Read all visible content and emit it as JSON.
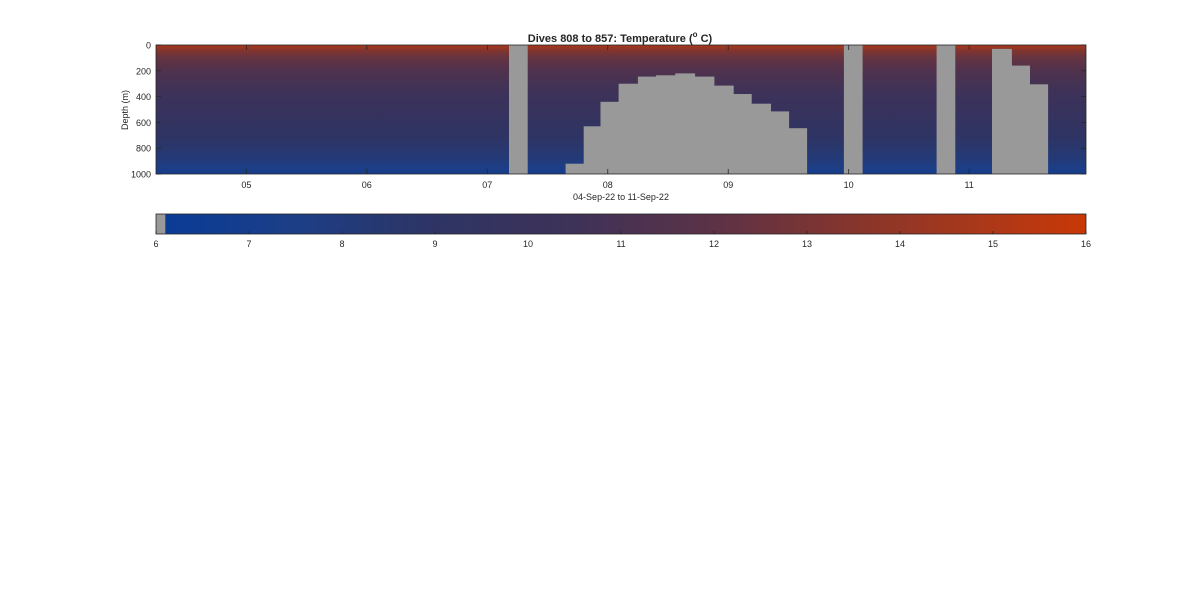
{
  "chart_data": {
    "type": "heatmap",
    "title": "Dives 808 to 857: Temperature (",
    "title_superscript": "o",
    "title_tail": " C)",
    "xlabel": "04-Sep-22 to 11-Sep-22",
    "ylabel": "Depth (m)",
    "x_ticks": [
      {
        "day": 5,
        "label": "05"
      },
      {
        "day": 6,
        "label": "06"
      },
      {
        "day": 7,
        "label": "07"
      },
      {
        "day": 8,
        "label": "08"
      },
      {
        "day": 9,
        "label": "09"
      },
      {
        "day": 10,
        "label": "10"
      },
      {
        "day": 11,
        "label": "11"
      }
    ],
    "xlim_days": [
      4.25,
      11.97
    ],
    "y_ticks": [
      0,
      200,
      400,
      600,
      800,
      1000
    ],
    "ylim": [
      0,
      1000
    ],
    "y_reversed": true,
    "temperature_profile": {
      "depth_m": [
        0,
        50,
        100,
        200,
        300,
        400,
        500,
        600,
        700,
        800,
        900,
        960,
        1000
      ],
      "temp_c": [
        14.8,
        13.2,
        12.3,
        11.4,
        10.8,
        10.3,
        9.9,
        9.5,
        9.1,
        8.6,
        8.0,
        7.4,
        7.0
      ]
    },
    "no_data_color": "#999999",
    "no_data_regions": [
      {
        "from_day": 7.18,
        "to_day": 7.33,
        "top_m": 0
      },
      {
        "from_day": 7.65,
        "to_day": 7.8,
        "top_m": 920
      },
      {
        "from_day": 7.8,
        "to_day": 7.94,
        "top_m": 630
      },
      {
        "from_day": 7.94,
        "to_day": 8.09,
        "top_m": 440
      },
      {
        "from_day": 8.09,
        "to_day": 8.25,
        "top_m": 300
      },
      {
        "from_day": 8.25,
        "to_day": 8.4,
        "top_m": 245
      },
      {
        "from_day": 8.4,
        "to_day": 8.56,
        "top_m": 235
      },
      {
        "from_day": 8.56,
        "to_day": 8.72,
        "top_m": 220
      },
      {
        "from_day": 8.72,
        "to_day": 8.88,
        "top_m": 245
      },
      {
        "from_day": 8.88,
        "to_day": 9.04,
        "top_m": 315
      },
      {
        "from_day": 9.04,
        "to_day": 9.19,
        "top_m": 380
      },
      {
        "from_day": 9.19,
        "to_day": 9.35,
        "top_m": 455
      },
      {
        "from_day": 9.35,
        "to_day": 9.5,
        "top_m": 515
      },
      {
        "from_day": 9.5,
        "to_day": 9.65,
        "top_m": 645
      },
      {
        "from_day": 9.96,
        "to_day": 10.11,
        "top_m": 0
      },
      {
        "from_day": 10.73,
        "to_day": 10.88,
        "top_m": 0
      },
      {
        "from_day": 11.19,
        "to_day": 11.35,
        "top_m": 30
      },
      {
        "from_day": 11.35,
        "to_day": 11.5,
        "top_m": 160
      },
      {
        "from_day": 11.5,
        "to_day": 11.65,
        "top_m": 305
      }
    ],
    "colorbar": {
      "ticks": [
        6,
        7,
        8,
        9,
        10,
        11,
        12,
        13,
        14,
        15,
        16
      ],
      "range": [
        6,
        16
      ],
      "no_data_band_upper": 6.1,
      "colormap": [
        {
          "value": 6.1,
          "color": "#0a3c96"
        },
        {
          "value": 7.5,
          "color": "#1c3e86"
        },
        {
          "value": 9.0,
          "color": "#2e3464"
        },
        {
          "value": 10.5,
          "color": "#3e3258"
        },
        {
          "value": 12.0,
          "color": "#5c3246"
        },
        {
          "value": 13.5,
          "color": "#86352c"
        },
        {
          "value": 15.0,
          "color": "#ad3818"
        },
        {
          "value": 16.0,
          "color": "#c93806"
        }
      ]
    }
  }
}
